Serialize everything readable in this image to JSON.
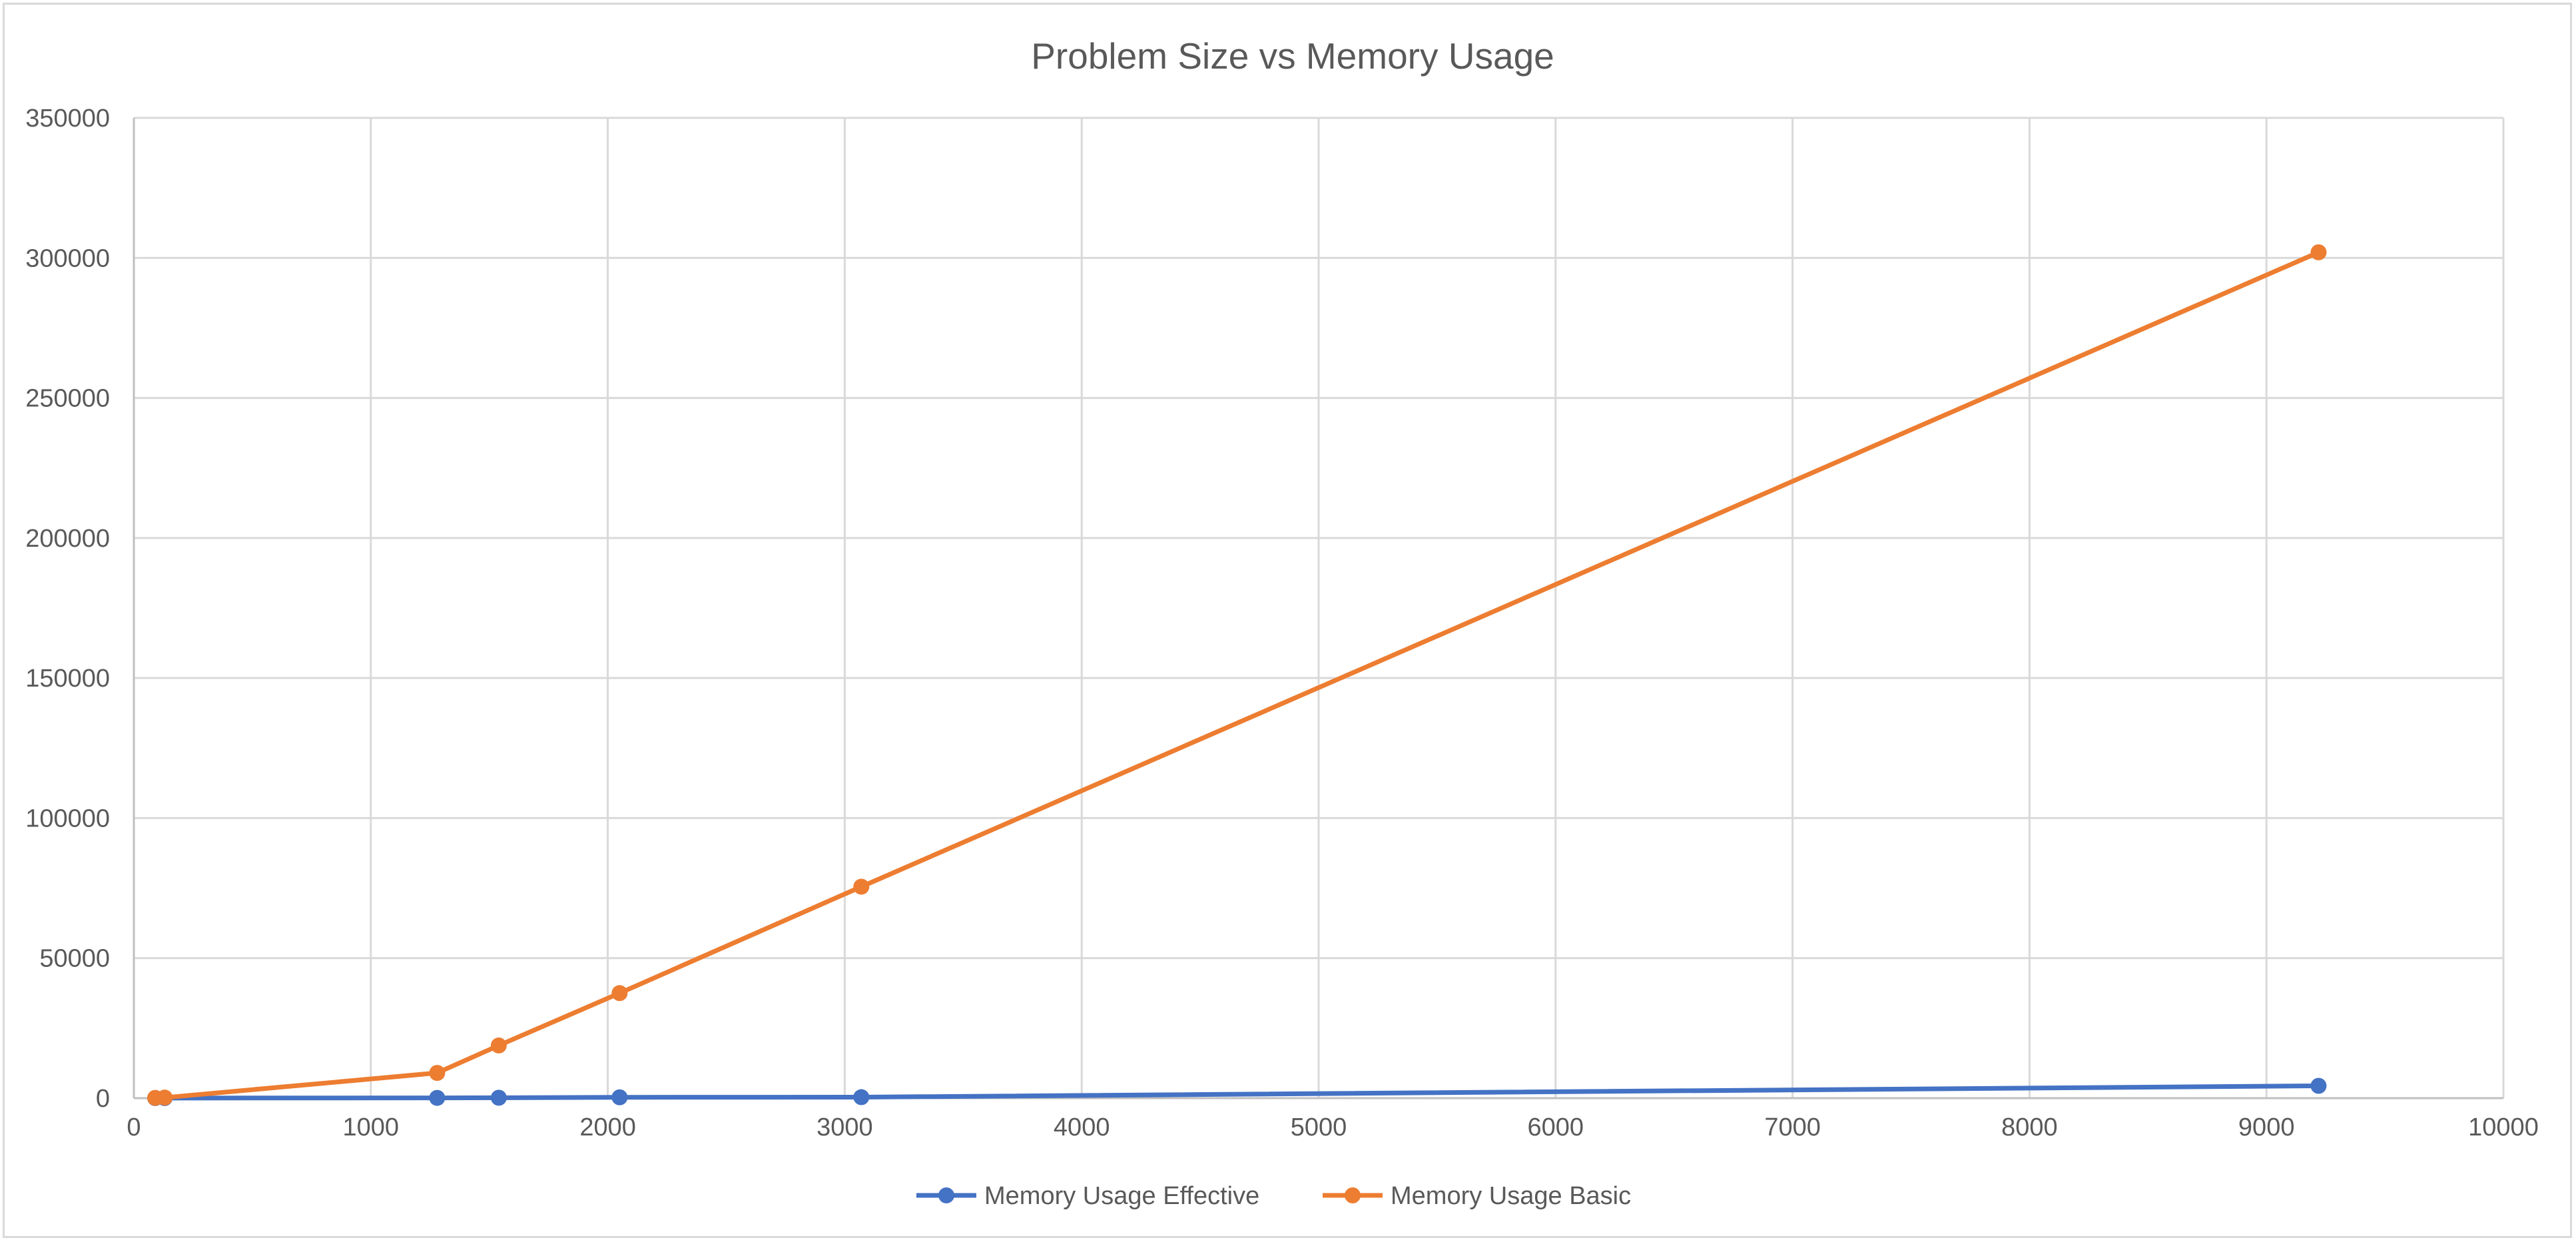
{
  "chart_data": {
    "type": "scatter",
    "title": "Problem Size vs Memory Usage",
    "xlabel": "",
    "ylabel": "",
    "xlim": [
      0,
      10000
    ],
    "ylim": [
      0,
      350000
    ],
    "x_ticks": [
      "0",
      "1000",
      "2000",
      "3000",
      "4000",
      "5000",
      "6000",
      "7000",
      "8000",
      "9000",
      "10000"
    ],
    "y_ticks": [
      "0",
      "50000",
      "100000",
      "150000",
      "200000",
      "250000",
      "300000",
      "350000"
    ],
    "grid": true,
    "lines_connected": true,
    "legend_position": "bottom",
    "series": [
      {
        "name": "Memory Usage Effective",
        "color": "#4472c4",
        "x": [
          90,
          130,
          1280,
          1540,
          2050,
          3070,
          9220
        ],
        "y": [
          20,
          30,
          100,
          150,
          300,
          350,
          4400
        ]
      },
      {
        "name": "Memory Usage Basic",
        "color": "#ed7d31",
        "x": [
          90,
          130,
          1280,
          1540,
          2050,
          3070,
          9220
        ],
        "y": [
          100,
          200,
          9000,
          18800,
          37500,
          75500,
          302000
        ]
      }
    ]
  }
}
